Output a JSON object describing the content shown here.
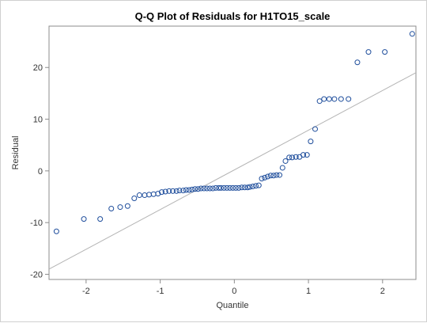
{
  "chart_data": {
    "type": "scatter",
    "title": "Q-Q Plot of Residuals for H1TO15_scale",
    "xlabel": "Quantile",
    "ylabel": "Residual",
    "xlim": [
      -2.5,
      2.45
    ],
    "ylim": [
      -21,
      28
    ],
    "xticks": [
      -2,
      -1,
      0,
      1,
      2
    ],
    "yticks": [
      -20,
      -10,
      0,
      10,
      20
    ],
    "grid": false,
    "legend": "none",
    "marker_color": "#1f4e9c",
    "reference_line_color": "#b4b4b4",
    "reference_line": [
      [
        -2.5,
        -19
      ],
      [
        2.45,
        19
      ]
    ],
    "points": [
      [
        -2.4,
        -11.7
      ],
      [
        -2.03,
        -9.3
      ],
      [
        -1.81,
        -9.3
      ],
      [
        -1.66,
        -7.3
      ],
      [
        -1.54,
        -7.0
      ],
      [
        -1.44,
        -6.8
      ],
      [
        -1.35,
        -5.3
      ],
      [
        -1.28,
        -4.7
      ],
      [
        -1.21,
        -4.7
      ],
      [
        -1.15,
        -4.6
      ],
      [
        -1.09,
        -4.5
      ],
      [
        -1.03,
        -4.4
      ],
      [
        -0.98,
        -4.1
      ],
      [
        -0.93,
        -4.0
      ],
      [
        -0.88,
        -3.9
      ],
      [
        -0.83,
        -3.9
      ],
      [
        -0.78,
        -3.9
      ],
      [
        -0.74,
        -3.8
      ],
      [
        -0.69,
        -3.8
      ],
      [
        -0.65,
        -3.7
      ],
      [
        -0.61,
        -3.7
      ],
      [
        -0.57,
        -3.6
      ],
      [
        -0.53,
        -3.5
      ],
      [
        -0.49,
        -3.5
      ],
      [
        -0.45,
        -3.4
      ],
      [
        -0.41,
        -3.4
      ],
      [
        -0.37,
        -3.4
      ],
      [
        -0.33,
        -3.4
      ],
      [
        -0.29,
        -3.4
      ],
      [
        -0.25,
        -3.3
      ],
      [
        -0.21,
        -3.3
      ],
      [
        -0.18,
        -3.3
      ],
      [
        -0.14,
        -3.3
      ],
      [
        -0.1,
        -3.3
      ],
      [
        -0.06,
        -3.3
      ],
      [
        -0.02,
        -3.3
      ],
      [
        0.02,
        -3.3
      ],
      [
        0.06,
        -3.3
      ],
      [
        0.1,
        -3.2
      ],
      [
        0.14,
        -3.2
      ],
      [
        0.18,
        -3.2
      ],
      [
        0.21,
        -3.1
      ],
      [
        0.25,
        -3.0
      ],
      [
        0.29,
        -2.9
      ],
      [
        0.33,
        -2.8
      ],
      [
        0.37,
        -1.5
      ],
      [
        0.41,
        -1.3
      ],
      [
        0.45,
        -1.1
      ],
      [
        0.49,
        -0.9
      ],
      [
        0.53,
        -0.9
      ],
      [
        0.57,
        -0.8
      ],
      [
        0.61,
        -0.8
      ],
      [
        0.65,
        0.6
      ],
      [
        0.69,
        1.9
      ],
      [
        0.74,
        2.6
      ],
      [
        0.78,
        2.6
      ],
      [
        0.83,
        2.7
      ],
      [
        0.88,
        2.7
      ],
      [
        0.93,
        3.1
      ],
      [
        0.98,
        3.1
      ],
      [
        1.03,
        5.7
      ],
      [
        1.09,
        8.1
      ],
      [
        1.15,
        13.5
      ],
      [
        1.21,
        13.9
      ],
      [
        1.28,
        13.9
      ],
      [
        1.35,
        13.9
      ],
      [
        1.44,
        13.9
      ],
      [
        1.54,
        13.9
      ],
      [
        1.66,
        21.0
      ],
      [
        1.81,
        23.0
      ],
      [
        2.03,
        23.0
      ],
      [
        2.4,
        26.5
      ]
    ]
  }
}
